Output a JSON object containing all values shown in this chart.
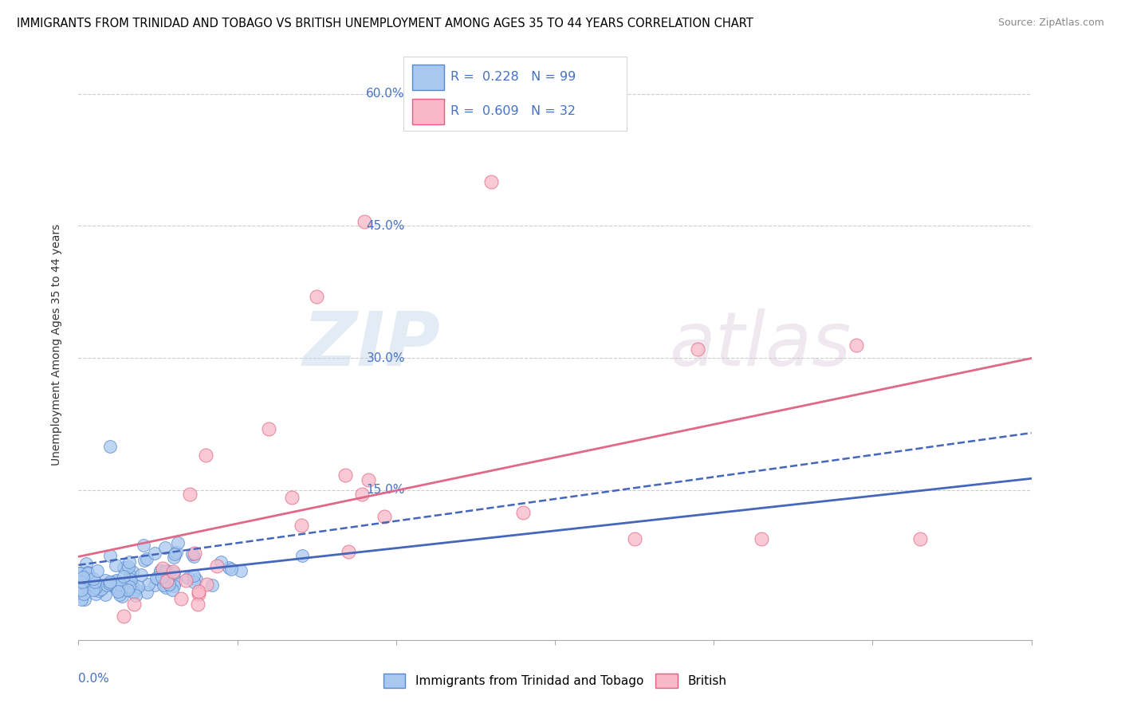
{
  "title": "IMMIGRANTS FROM TRINIDAD AND TOBAGO VS BRITISH UNEMPLOYMENT AMONG AGES 35 TO 44 YEARS CORRELATION CHART",
  "source": "Source: ZipAtlas.com",
  "ylabel": "Unemployment Among Ages 35 to 44 years",
  "R_blue": 0.228,
  "N_blue": 99,
  "R_pink": 0.609,
  "N_pink": 32,
  "color_blue_fill": "#a8c8f0",
  "color_blue_edge": "#5588cc",
  "color_pink_fill": "#f8b8c8",
  "color_pink_edge": "#e06080",
  "color_blue_line": "#4466bb",
  "color_pink_line": "#e06888",
  "color_ytick": "#4472c4",
  "legend_label_blue": "Immigrants from Trinidad and Tobago",
  "legend_label_pink": "British",
  "watermark_zip": "ZIP",
  "watermark_atlas": "atlas",
  "xlim": [
    0.0,
    0.3
  ],
  "ylim": [
    -0.02,
    0.65
  ],
  "yticks": [
    0.0,
    0.15,
    0.3,
    0.45,
    0.6
  ],
  "ytick_labels": [
    "",
    "15.0%",
    "30.0%",
    "45.0%",
    "60.0%"
  ]
}
